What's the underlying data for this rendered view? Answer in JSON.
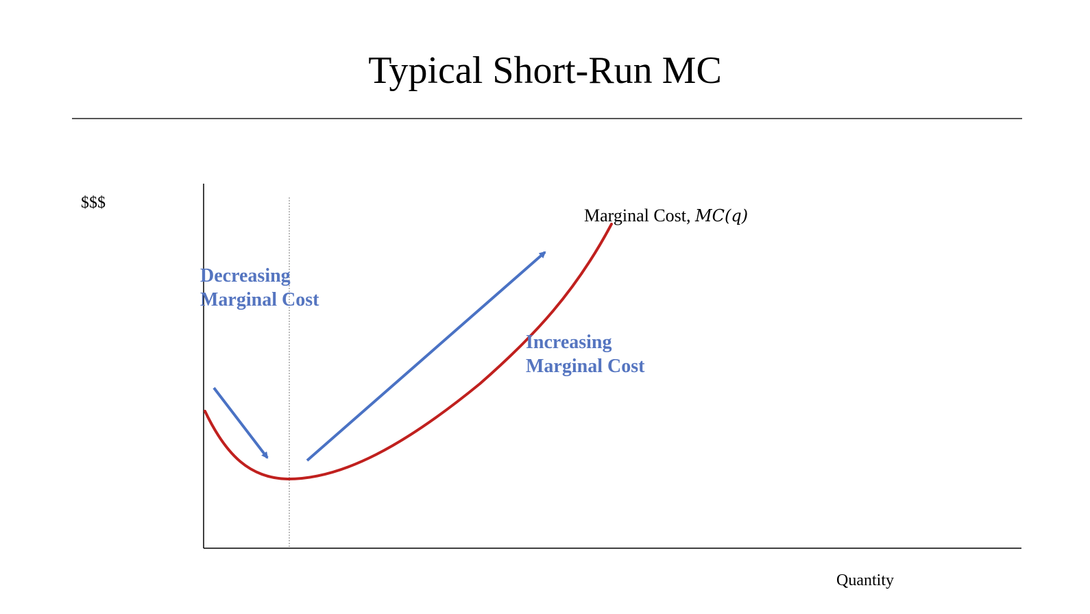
{
  "slide": {
    "title": "Typical Short-Run MC"
  },
  "chart_data": {
    "type": "line",
    "ylabel": "$$$",
    "xlabel": "Quantity",
    "series": [
      {
        "name": "Marginal Cost, ",
        "name_math": "MC(q)"
      }
    ],
    "annotations": {
      "decreasing": [
        "Decreasing",
        "Marginal Cost"
      ],
      "increasing": [
        "Increasing",
        "Marginal Cost"
      ]
    },
    "grid": false,
    "colors": {
      "curve": "#c0201e",
      "arrows": "#4a72c4",
      "annotation_text": "#5575c0",
      "axes": "#000000",
      "min_guide": "#777777"
    }
  }
}
